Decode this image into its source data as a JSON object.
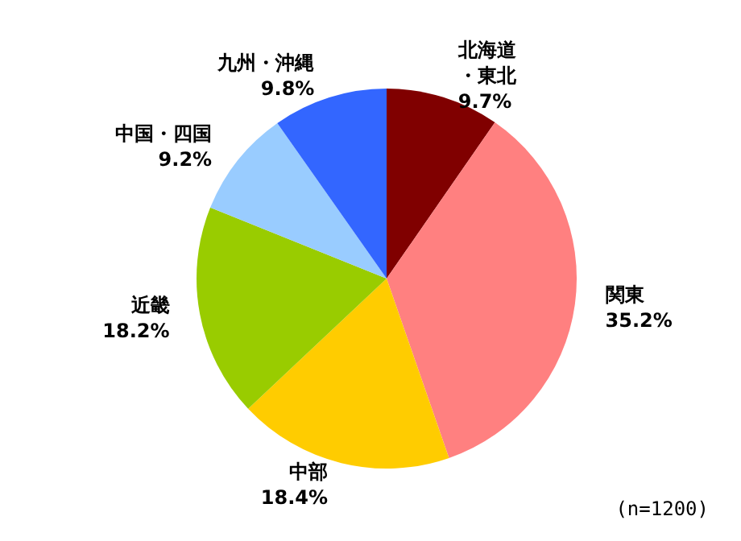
{
  "chart_data": {
    "type": "pie",
    "categories": [
      "北海道・東北",
      "関東",
      "中部",
      "近畿",
      "中国・四国",
      "九州・沖縄"
    ],
    "values": [
      9.7,
      35.2,
      18.4,
      18.2,
      9.2,
      9.8
    ],
    "colors": [
      "#800000",
      "#ff8080",
      "#ffcc00",
      "#99cc00",
      "#99ccff",
      "#3366ff"
    ],
    "value_labels": [
      "9.7%",
      "35.2%",
      "18.4%",
      "18.2%",
      "9.2%",
      "9.8%"
    ],
    "legend": false,
    "annotations": [
      "(n=1200)"
    ]
  }
}
